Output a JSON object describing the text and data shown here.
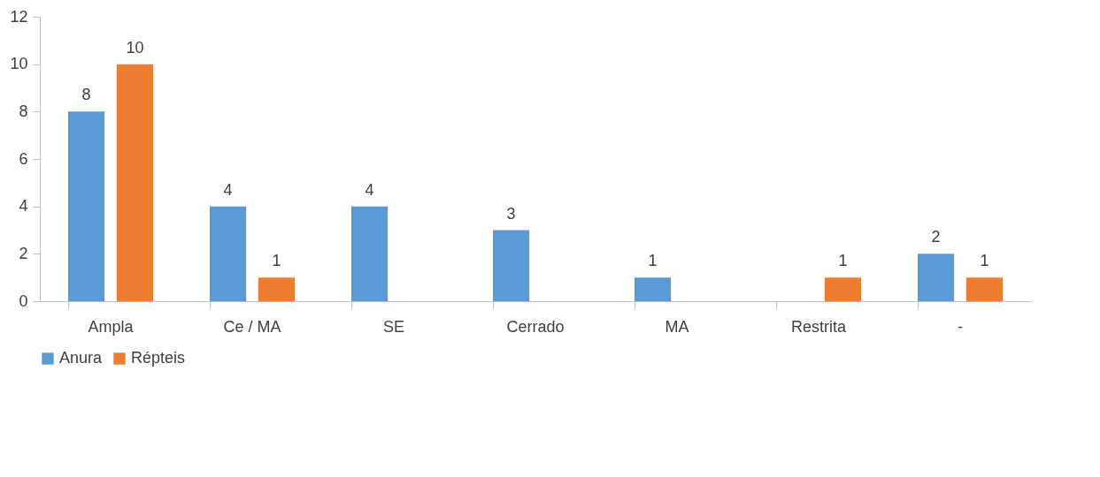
{
  "chart_data": {
    "type": "bar",
    "categories": [
      "Ampla",
      "Ce / MA",
      "SE",
      "Cerrado",
      "MA",
      "Restrita",
      "-"
    ],
    "series": [
      {
        "name": "Anura",
        "color": "#5b9bd5",
        "values": [
          8,
          4,
          4,
          3,
          1,
          null,
          2
        ]
      },
      {
        "name": "Répteis",
        "color": "#ed7d31",
        "values": [
          10,
          1,
          null,
          null,
          null,
          1,
          1
        ]
      }
    ],
    "ylim": [
      0,
      12
    ],
    "yticks": [
      0,
      2,
      4,
      6,
      8,
      10,
      12
    ],
    "grid": false,
    "legend": "bottom",
    "data_labels": true
  }
}
